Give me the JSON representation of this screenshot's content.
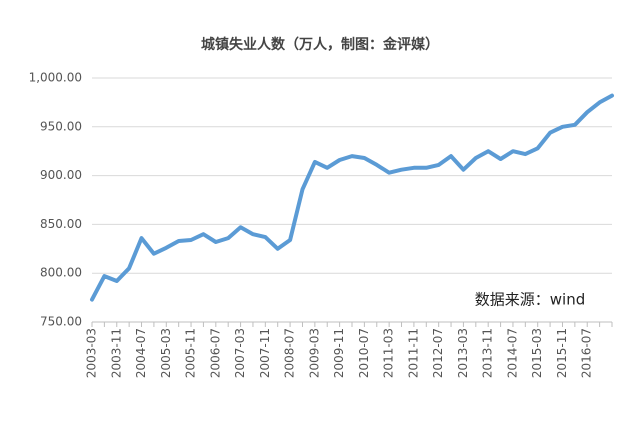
{
  "chart_data": {
    "type": "line",
    "title": "城镇失业人数（万人，制图：金评媒）",
    "categories": [
      "2003-03",
      null,
      "2003-11",
      null,
      "2004-07",
      null,
      "2005-03",
      null,
      "2005-11",
      null,
      "2006-07",
      null,
      "2007-03",
      null,
      "2007-11",
      null,
      "2008-07",
      null,
      "2009-03",
      null,
      "2009-11",
      null,
      "2010-07",
      null,
      "2011-03",
      null,
      "2011-11",
      null,
      "2012-07",
      null,
      "2013-03",
      null,
      "2013-11",
      null,
      "2014-07",
      null,
      "2015-03",
      null,
      "2015-11",
      null,
      "2016-07",
      null,
      null
    ],
    "series": [
      {
        "name": "城镇失业人数",
        "color": "#5b9bd5",
        "values": [
          773,
          797,
          792,
          805,
          836,
          820,
          826,
          833,
          834,
          840,
          832,
          836,
          847,
          840,
          837,
          825,
          834,
          886,
          914,
          908,
          916,
          920,
          918,
          911,
          903,
          906,
          908,
          908,
          911,
          920,
          906,
          918,
          925,
          917,
          925,
          922,
          928,
          944,
          950,
          952,
          965,
          975,
          982
        ]
      }
    ],
    "ylim": [
      750,
      1000
    ],
    "yticks": [
      {
        "value": 750,
        "label": "750.00"
      },
      {
        "value": 800,
        "label": "800.00"
      },
      {
        "value": 850,
        "label": "850.00"
      },
      {
        "value": 900,
        "label": "900.00"
      },
      {
        "value": 950,
        "label": "950.00"
      },
      {
        "value": 1000,
        "label": "1,000.00"
      }
    ],
    "grid": true,
    "annotation": "数据来源：wind"
  }
}
